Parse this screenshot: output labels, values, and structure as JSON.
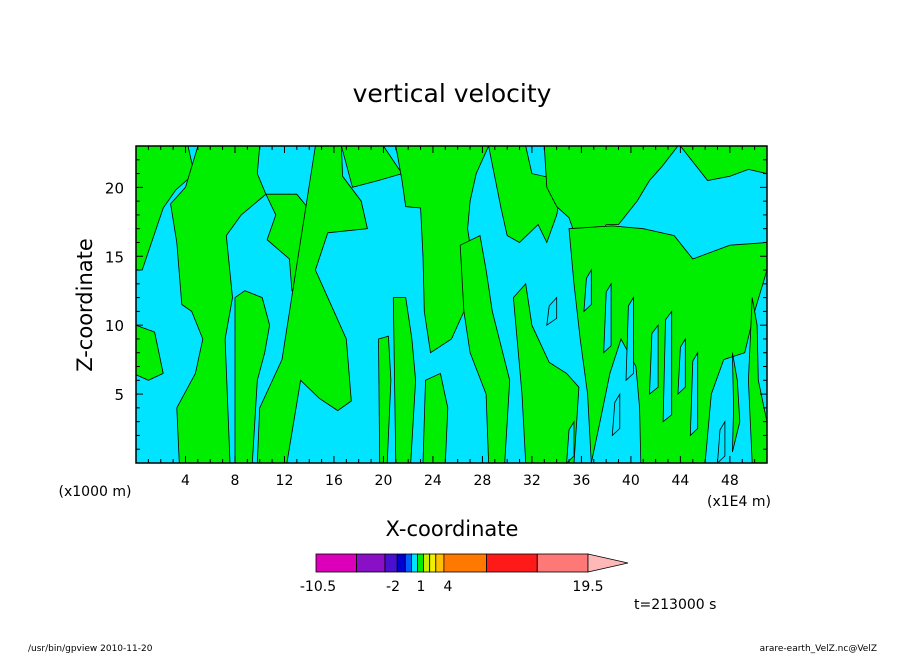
{
  "chart_data": {
    "type": "heatmap",
    "title": "vertical velocity",
    "xlabel": "X-coordinate",
    "ylabel": "Z-coordinate",
    "x_units_label": "(x1E4 m)",
    "y_units_label": "(x1000 m)",
    "xlim": [
      0,
      51
    ],
    "ylim": [
      0,
      23
    ],
    "x_ticks": [
      "4",
      "8",
      "12",
      "16",
      "20",
      "24",
      "28",
      "32",
      "36",
      "40",
      "44",
      "48"
    ],
    "x_tick_values": [
      4,
      8,
      12,
      16,
      20,
      24,
      28,
      32,
      36,
      40,
      44,
      48
    ],
    "y_ticks": [
      "5",
      "10",
      "15",
      "20"
    ],
    "y_tick_values": [
      5,
      10,
      15,
      20
    ],
    "dominant_colors": {
      "positive": "#00ee00",
      "negative": "#00e4ff"
    },
    "colorbar": {
      "labels": [
        "-10.5",
        "-2",
        "1",
        "4",
        "19.5"
      ],
      "colors": [
        "#dd00bb",
        "#8a10c8",
        "#4a10d0",
        "#0000d0",
        "#0060ff",
        "#00e4ff",
        "#00ee00",
        "#c8f000",
        "#f0f000",
        "#ffc000",
        "#ff7800",
        "#ff1a1a",
        "#ff7878",
        "#ffb8b8"
      ]
    },
    "time_label": "t=213000 s",
    "footer_left": "/usr/bin/gpview   2010-11-20",
    "footer_right": "arare-earth_VelZ.nc@VelZ"
  }
}
